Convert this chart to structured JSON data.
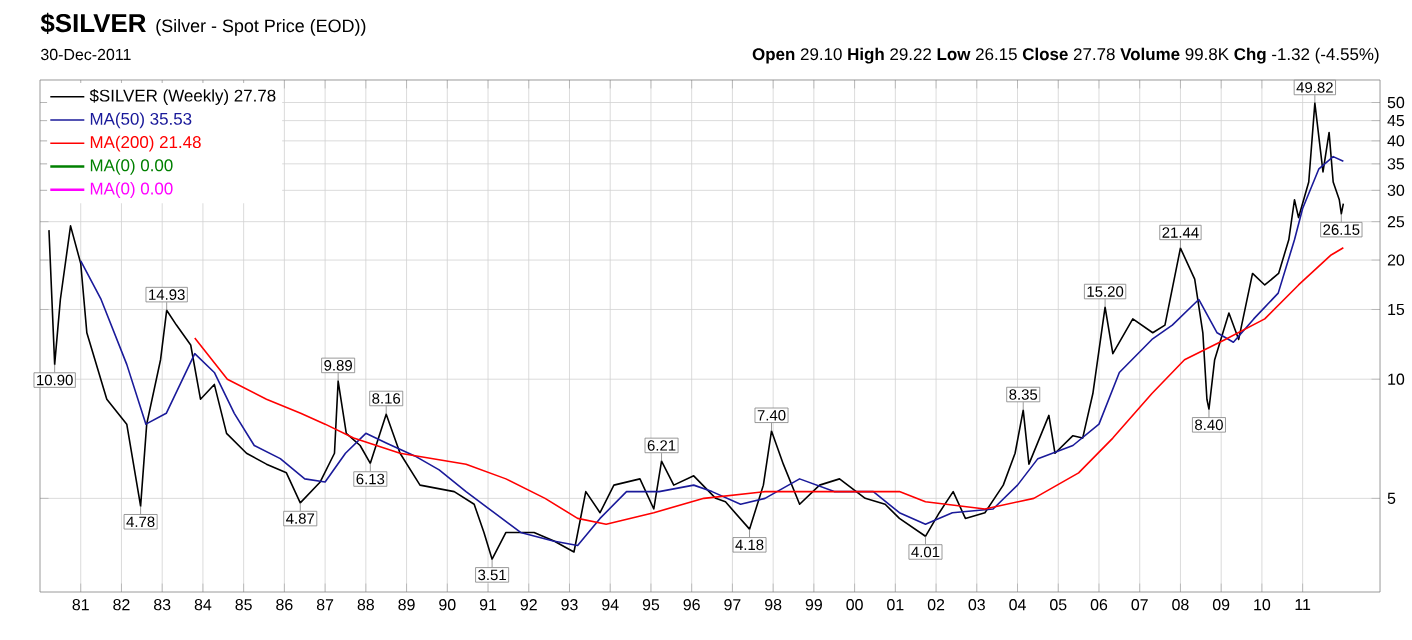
{
  "chart_data": {
    "type": "line",
    "title": "$SILVER",
    "subtitle": "(Silver - Spot Price (EOD))",
    "annotations": [
      "30-Dec-2011",
      "**Open** 29.10 **High** 29.22 **Low** 26.15 **Close** 27.78 **Volume** 99.8K **Chg** -1.32 (-4.55%)",
      {
        "text": "10.90",
        "x": 1980.36,
        "y": 10.9
      },
      {
        "text": "4.78",
        "x": 1982.47,
        "y": 4.78
      },
      {
        "text": "14.93",
        "x": 1983.11,
        "y": 14.93
      },
      {
        "text": "4.87",
        "x": 1986.39,
        "y": 4.87
      },
      {
        "text": "9.89",
        "x": 1987.32,
        "y": 9.89
      },
      {
        "text": "6.13",
        "x": 1988.11,
        "y": 6.13
      },
      {
        "text": "8.16",
        "x": 1988.5,
        "y": 8.16
      },
      {
        "text": "3.51",
        "x": 1991.1,
        "y": 3.51
      },
      {
        "text": "6.21",
        "x": 1995.26,
        "y": 6.21
      },
      {
        "text": "4.18",
        "x": 1997.42,
        "y": 4.18
      },
      {
        "text": "7.40",
        "x": 1997.96,
        "y": 7.4
      },
      {
        "text": "4.01",
        "x": 2001.74,
        "y": 4.01
      },
      {
        "text": "8.35",
        "x": 2004.14,
        "y": 8.35
      },
      {
        "text": "15.20",
        "x": 2006.15,
        "y": 15.2
      },
      {
        "text": "21.44",
        "x": 2008.0,
        "y": 21.44
      },
      {
        "text": "8.40",
        "x": 2008.7,
        "y": 8.4
      },
      {
        "text": "49.82",
        "x": 2011.3,
        "y": 49.82
      },
      {
        "text": "26.15",
        "x": 2011.95,
        "y": 26.15
      }
    ],
    "series": [
      {
        "name": "$SILVER (Weekly) 27.78",
        "color": "#000000",
        "x": [
          1980.22,
          1980.36,
          1980.5,
          1980.75,
          1981.0,
          1981.15,
          1981.64,
          1982.13,
          1982.47,
          1982.62,
          1982.96,
          1983.11,
          1983.35,
          1983.7,
          1983.94,
          1984.28,
          1984.58,
          1985.07,
          1985.56,
          1986.05,
          1986.39,
          1986.88,
          1987.23,
          1987.32,
          1987.52,
          1987.86,
          1988.11,
          1988.5,
          1988.84,
          1989.33,
          1990.17,
          1990.66,
          1990.9,
          1991.1,
          1991.44,
          1992.13,
          1992.62,
          1993.11,
          1993.4,
          1993.75,
          1994.09,
          1994.73,
          1995.07,
          1995.26,
          1995.56,
          1996.05,
          1996.59,
          1996.83,
          1997.42,
          1997.76,
          1997.96,
          1998.25,
          1998.65,
          1999.14,
          1999.63,
          2000.26,
          2000.75,
          2001.1,
          2001.74,
          2002.08,
          2002.42,
          2002.72,
          2003.2,
          2003.65,
          2003.94,
          2004.14,
          2004.28,
          2004.77,
          2004.92,
          2005.36,
          2005.6,
          2005.85,
          2006.15,
          2006.34,
          2006.83,
          2007.32,
          2007.62,
          2008.0,
          2008.35,
          2008.55,
          2008.65,
          2008.7,
          2008.84,
          2009.19,
          2009.43,
          2009.77,
          2010.07,
          2010.41,
          2010.66,
          2010.8,
          2010.9,
          2011.15,
          2011.3,
          2011.5,
          2011.65,
          2011.75,
          2011.9,
          2011.95,
          2012.0
        ],
        "values": [
          23.8,
          10.9,
          15.9,
          24.4,
          19.6,
          13.1,
          8.9,
          7.7,
          4.78,
          7.7,
          11.2,
          14.93,
          13.7,
          12.2,
          8.9,
          9.7,
          7.3,
          6.5,
          6.1,
          5.8,
          4.87,
          5.5,
          6.5,
          9.89,
          7.3,
          6.8,
          6.13,
          8.16,
          6.5,
          5.4,
          5.2,
          4.83,
          4.1,
          3.51,
          4.1,
          4.1,
          3.9,
          3.66,
          5.2,
          4.6,
          5.4,
          5.6,
          4.7,
          6.21,
          5.4,
          5.7,
          5.0,
          4.9,
          4.18,
          5.4,
          7.4,
          6.1,
          4.83,
          5.4,
          5.6,
          5.0,
          4.83,
          4.45,
          4.01,
          4.6,
          5.2,
          4.45,
          4.6,
          5.4,
          6.5,
          8.35,
          6.1,
          8.1,
          6.5,
          7.2,
          7.1,
          9.2,
          15.2,
          11.6,
          14.2,
          13.1,
          13.7,
          21.44,
          17.9,
          13.1,
          8.9,
          8.4,
          11.2,
          14.7,
          12.6,
          18.5,
          17.3,
          18.5,
          22.5,
          28.4,
          25.6,
          31.5,
          49.82,
          33.4,
          42,
          31.5,
          28.4,
          26.15,
          27.78
        ]
      },
      {
        "name": "MA(50) 35.53",
        "color": "#1a1a9a",
        "x": [
          1981.0,
          1981.5,
          1982.13,
          1982.6,
          1983.1,
          1983.8,
          1984.28,
          1984.77,
          1985.26,
          1985.9,
          1986.5,
          1987.0,
          1987.5,
          1988.0,
          1988.5,
          1989.2,
          1989.8,
          1990.46,
          1991.15,
          1991.8,
          1992.6,
          1993.2,
          1993.75,
          1994.4,
          1995.2,
          1996.05,
          1996.5,
          1997.2,
          1997.8,
          1998.65,
          1999.5,
          2000.46,
          2001.1,
          2001.74,
          2002.4,
          2003.4,
          2004.0,
          2004.5,
          2005.36,
          2006.0,
          2006.5,
          2007.3,
          2007.8,
          2008.45,
          2008.9,
          2009.3,
          2009.8,
          2010.4,
          2010.8,
          2011.0,
          2011.4,
          2011.75,
          2012.0
        ],
        "values": [
          19.9,
          15.9,
          10.9,
          7.7,
          8.2,
          11.6,
          10.4,
          8.2,
          6.8,
          6.3,
          5.6,
          5.5,
          6.5,
          7.3,
          6.9,
          6.4,
          5.9,
          5.2,
          4.6,
          4.1,
          3.9,
          3.8,
          4.45,
          5.2,
          5.2,
          5.4,
          5.2,
          4.83,
          5.0,
          5.6,
          5.2,
          5.2,
          4.6,
          4.3,
          4.6,
          4.7,
          5.4,
          6.3,
          6.8,
          7.7,
          10.4,
          12.6,
          13.7,
          15.9,
          13.1,
          12.4,
          14.2,
          16.5,
          22.5,
          27,
          34,
          36.5,
          35.53
        ]
      },
      {
        "name": "MA(200) 21.48",
        "color": "#ff0000",
        "x": [
          1983.8,
          1984.6,
          1985.56,
          1986.4,
          1987.0,
          1987.7,
          1988.84,
          1990.46,
          1991.44,
          1992.4,
          1993.2,
          1993.9,
          1995.07,
          1996.3,
          1997.8,
          1999.5,
          2001.1,
          2001.74,
          2003.2,
          2004.4,
          2005.5,
          2006.34,
          2007.3,
          2008.1,
          2009.1,
          2010.07,
          2010.9,
          2011.7,
          2012.0
        ],
        "values": [
          12.7,
          10.0,
          8.9,
          8.2,
          7.7,
          7.1,
          6.5,
          6.1,
          5.6,
          5.0,
          4.45,
          4.3,
          4.6,
          5.0,
          5.2,
          5.2,
          5.2,
          4.9,
          4.7,
          5.0,
          5.8,
          7.1,
          9.2,
          11.2,
          12.6,
          14.2,
          17.3,
          20.6,
          21.48
        ]
      },
      {
        "name": "MA(0) 0.00",
        "color": "#008000"
      },
      {
        "name": "MA(0) 0.00",
        "color": "#ff00ff"
      }
    ],
    "xlim": [
      1980.0,
      2012.9
    ],
    "ylim": [
      2.9,
      57
    ],
    "log": "y",
    "xticks": [
      {
        "value": 1981,
        "label": "81"
      },
      {
        "value": 1982,
        "label": "82"
      },
      {
        "value": 1983,
        "label": "83"
      },
      {
        "value": 1984,
        "label": "84"
      },
      {
        "value": 1985,
        "label": "85"
      },
      {
        "value": 1986,
        "label": "86"
      },
      {
        "value": 1987,
        "label": "87"
      },
      {
        "value": 1988,
        "label": "88"
      },
      {
        "value": 1989,
        "label": "89"
      },
      {
        "value": 1990,
        "label": "90"
      },
      {
        "value": 1991,
        "label": "91"
      },
      {
        "value": 1992,
        "label": "92"
      },
      {
        "value": 1993,
        "label": "93"
      },
      {
        "value": 1994,
        "label": "94"
      },
      {
        "value": 1995,
        "label": "95"
      },
      {
        "value": 1996,
        "label": "96"
      },
      {
        "value": 1997,
        "label": "97"
      },
      {
        "value": 1998,
        "label": "98"
      },
      {
        "value": 1999,
        "label": "99"
      },
      {
        "value": 2000,
        "label": "00"
      },
      {
        "value": 2001,
        "label": "01"
      },
      {
        "value": 2002,
        "label": "02"
      },
      {
        "value": 2003,
        "label": "03"
      },
      {
        "value": 2004,
        "label": "04"
      },
      {
        "value": 2005,
        "label": "05"
      },
      {
        "value": 2006,
        "label": "06"
      },
      {
        "value": 2007,
        "label": "07"
      },
      {
        "value": 2008,
        "label": "08"
      },
      {
        "value": 2009,
        "label": "09"
      },
      {
        "value": 2010,
        "label": "10"
      },
      {
        "value": 2011,
        "label": "11"
      }
    ],
    "yticks": [
      5,
      10,
      15,
      20,
      25,
      30,
      35,
      40,
      45,
      50
    ],
    "grid": true,
    "legend": "top left",
    "marker": "none",
    "line_style": "solid"
  }
}
